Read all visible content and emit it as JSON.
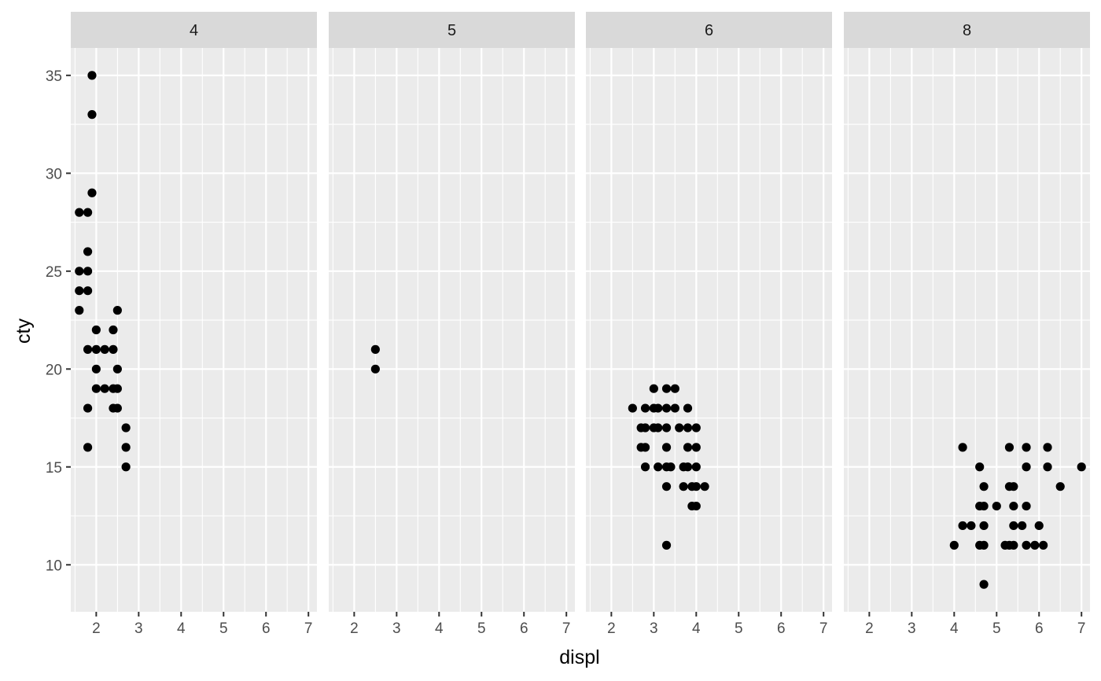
{
  "chart_data": {
    "type": "scatter",
    "facet_variable": "cyl",
    "xlabel": "displ",
    "ylabel": "cty",
    "xlim": [
      1.4,
      7.2
    ],
    "ylim": [
      7.6,
      36.4
    ],
    "x_ticks": [
      2,
      3,
      4,
      5,
      6,
      7
    ],
    "x_tick_labels": [
      "2",
      "3",
      "4",
      "5",
      "6",
      "7"
    ],
    "y_ticks": [
      10,
      15,
      20,
      25,
      30,
      35
    ],
    "y_tick_labels": [
      "10",
      "15",
      "20",
      "25",
      "30",
      "35"
    ],
    "grid": true,
    "colors": {
      "panel_background": "#ebebeb",
      "strip_background": "#d9d9d9",
      "grid": "#ffffff",
      "points": "#000000"
    },
    "panels": [
      {
        "label": "4",
        "points": [
          [
            1.9,
            35
          ],
          [
            1.9,
            33
          ],
          [
            1.9,
            29
          ],
          [
            1.6,
            28
          ],
          [
            1.8,
            28
          ],
          [
            1.8,
            26
          ],
          [
            1.6,
            25
          ],
          [
            1.8,
            25
          ],
          [
            1.6,
            24
          ],
          [
            1.8,
            24
          ],
          [
            1.6,
            23
          ],
          [
            2.5,
            23
          ],
          [
            2.0,
            22
          ],
          [
            2.4,
            22
          ],
          [
            1.8,
            21
          ],
          [
            2.0,
            21
          ],
          [
            2.2,
            21
          ],
          [
            2.4,
            21
          ],
          [
            2.0,
            20
          ],
          [
            2.5,
            20
          ],
          [
            2.0,
            19
          ],
          [
            2.2,
            19
          ],
          [
            2.4,
            19
          ],
          [
            2.5,
            19
          ],
          [
            1.8,
            18
          ],
          [
            2.4,
            18
          ],
          [
            2.5,
            18
          ],
          [
            2.7,
            17
          ],
          [
            1.8,
            16
          ],
          [
            2.7,
            16
          ],
          [
            2.7,
            15
          ]
        ]
      },
      {
        "label": "5",
        "points": [
          [
            2.5,
            21
          ],
          [
            2.5,
            20
          ]
        ]
      },
      {
        "label": "6",
        "points": [
          [
            3.0,
            19
          ],
          [
            3.3,
            19
          ],
          [
            3.5,
            19
          ],
          [
            2.5,
            18
          ],
          [
            2.8,
            18
          ],
          [
            3.0,
            18
          ],
          [
            3.1,
            18
          ],
          [
            3.3,
            18
          ],
          [
            3.5,
            18
          ],
          [
            3.8,
            18
          ],
          [
            2.7,
            17
          ],
          [
            2.8,
            17
          ],
          [
            3.0,
            17
          ],
          [
            3.1,
            17
          ],
          [
            3.3,
            17
          ],
          [
            3.6,
            17
          ],
          [
            3.8,
            17
          ],
          [
            4.0,
            17
          ],
          [
            2.7,
            16
          ],
          [
            2.8,
            16
          ],
          [
            3.3,
            16
          ],
          [
            3.8,
            16
          ],
          [
            4.0,
            16
          ],
          [
            2.8,
            15
          ],
          [
            3.1,
            15
          ],
          [
            3.3,
            15
          ],
          [
            3.4,
            15
          ],
          [
            3.7,
            15
          ],
          [
            3.8,
            15
          ],
          [
            4.0,
            15
          ],
          [
            3.3,
            14
          ],
          [
            3.7,
            14
          ],
          [
            3.9,
            14
          ],
          [
            4.0,
            14
          ],
          [
            4.2,
            14
          ],
          [
            3.9,
            13
          ],
          [
            4.0,
            13
          ],
          [
            3.3,
            11
          ]
        ]
      },
      {
        "label": "8",
        "points": [
          [
            4.2,
            16
          ],
          [
            5.3,
            16
          ],
          [
            5.7,
            16
          ],
          [
            6.2,
            16
          ],
          [
            4.6,
            15
          ],
          [
            5.7,
            15
          ],
          [
            6.2,
            15
          ],
          [
            7.0,
            15
          ],
          [
            4.7,
            14
          ],
          [
            5.3,
            14
          ],
          [
            5.4,
            14
          ],
          [
            6.5,
            14
          ],
          [
            4.6,
            13
          ],
          [
            4.7,
            13
          ],
          [
            5.0,
            13
          ],
          [
            5.4,
            13
          ],
          [
            5.7,
            13
          ],
          [
            4.2,
            12
          ],
          [
            4.4,
            12
          ],
          [
            4.7,
            12
          ],
          [
            5.4,
            12
          ],
          [
            5.6,
            12
          ],
          [
            6.0,
            12
          ],
          [
            4.0,
            11
          ],
          [
            4.6,
            11
          ],
          [
            4.7,
            11
          ],
          [
            5.2,
            11
          ],
          [
            5.3,
            11
          ],
          [
            5.4,
            11
          ],
          [
            5.7,
            11
          ],
          [
            5.9,
            11
          ],
          [
            6.1,
            11
          ],
          [
            4.7,
            9
          ]
        ]
      }
    ]
  }
}
